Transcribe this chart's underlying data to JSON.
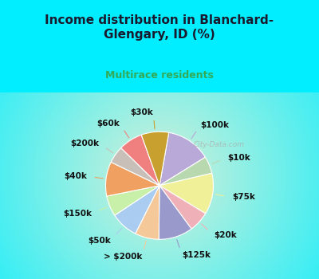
{
  "title_line1": "Income distribution in Blanchard-",
  "title_line2": "Glengary, ID (%)",
  "subtitle": "Multirace residents",
  "title_color": "#1a1a2e",
  "subtitle_color": "#33aa55",
  "background_cyan": "#00eeff",
  "background_chart_gradient_outer": "#00ddee",
  "background_chart_gradient_inner": "#d8f0d8",
  "watermark": "City-Data.com",
  "labels": [
    "$100k",
    "$10k",
    "$75k",
    "$20k",
    "$125k",
    "> $200k",
    "$50k",
    "$150k",
    "$40k",
    "$200k",
    "$60k",
    "$30k"
  ],
  "values": [
    13,
    5,
    12,
    6,
    10,
    7,
    8,
    6,
    10,
    5,
    7,
    8
  ],
  "colors": [
    "#b8a9d9",
    "#b8d9b0",
    "#f0f099",
    "#f0b0b8",
    "#9999cc",
    "#f5c899",
    "#aaccf0",
    "#c8f0a8",
    "#f0a060",
    "#c8c0b8",
    "#f08080",
    "#c8a030"
  ],
  "label_fontsize": 7.5,
  "label_color": "#111111",
  "figsize": [
    4.0,
    3.5
  ],
  "dpi": 100,
  "startangle": 80
}
